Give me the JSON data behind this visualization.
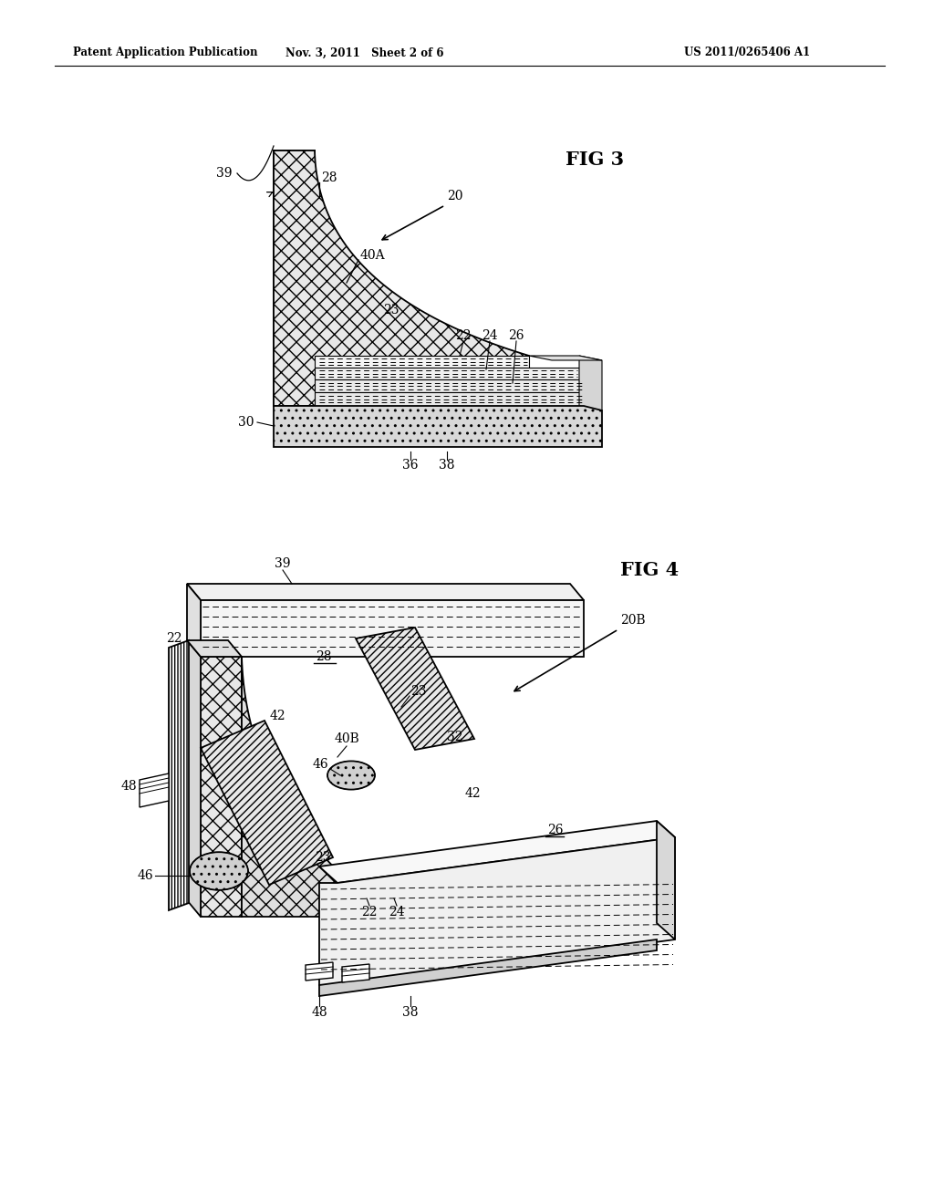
{
  "header_left": "Patent Application Publication",
  "header_mid": "Nov. 3, 2011   Sheet 2 of 6",
  "header_right": "US 2011/0265406 A1",
  "fig3_label": "FIG 3",
  "fig4_label": "FIG 4",
  "bg": "#ffffff",
  "lc": "#000000"
}
